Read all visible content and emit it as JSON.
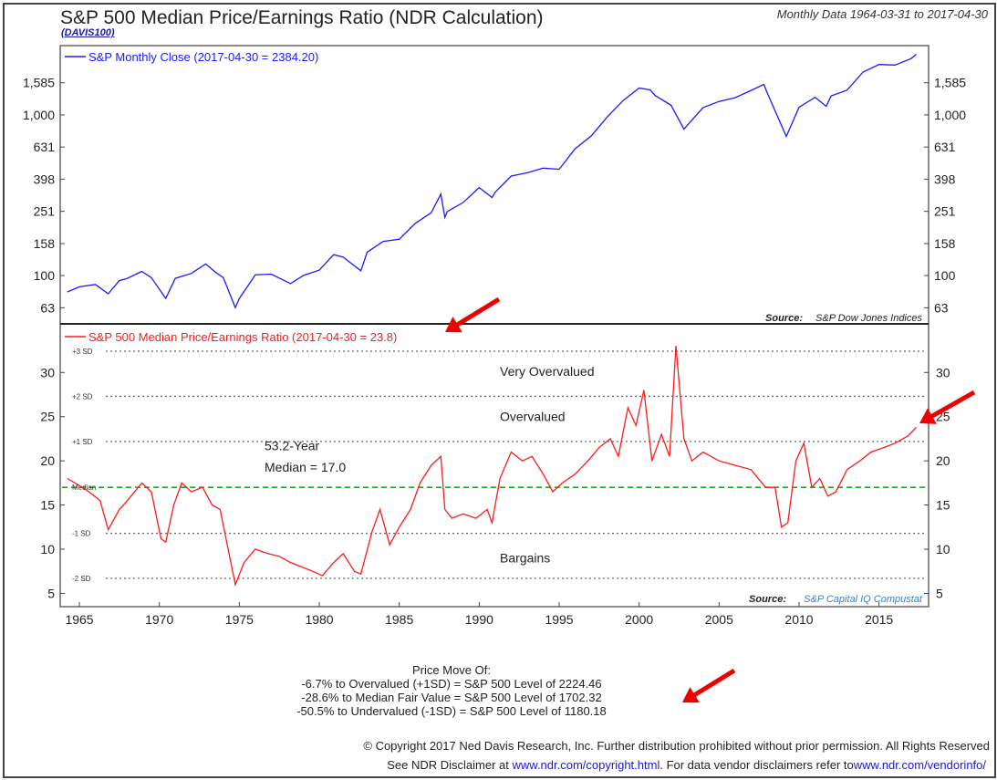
{
  "header": {
    "title": "S&P 500 Median Price/Earnings Ratio (NDR Calculation)",
    "ticker": "(DAVIS100)",
    "range": "Monthly Data 1964-03-31 to 2017-04-30"
  },
  "chart_data": [
    {
      "type": "line",
      "panel": "top",
      "legend": "S&P Monthly Close (2017-04-30 = 2384.20)",
      "yscale": "log",
      "yticks": [
        "63",
        "100",
        "158",
        "251",
        "398",
        "631",
        "1,000",
        "1,585"
      ],
      "ytick_values": [
        63,
        100,
        158,
        251,
        398,
        631,
        1000,
        1585
      ],
      "ylim": [
        50,
        2700
      ],
      "source_label": "Source:",
      "source": "S&P Dow Jones Indices",
      "color": "#1a1aff",
      "x": [
        1964.25,
        1965,
        1966,
        1966.8,
        1967.5,
        1968,
        1968.9,
        1969.5,
        1970.4,
        1971,
        1972,
        1972.9,
        1973.5,
        1974,
        1974.75,
        1975,
        1976,
        1977,
        1978.2,
        1979,
        1980,
        1980.9,
        1981.5,
        1982.6,
        1983,
        1984,
        1985,
        1986,
        1987,
        1987.6,
        1987.85,
        1988,
        1989,
        1990,
        1990.8,
        1991,
        1992,
        1993,
        1994,
        1995,
        1996,
        1997,
        1998,
        1999,
        2000,
        2000.7,
        2001,
        2002,
        2002.8,
        2003,
        2004,
        2005,
        2006,
        2007,
        2007.8,
        2008,
        2009.2,
        2010,
        2011,
        2011.7,
        2012,
        2013,
        2014,
        2015,
        2016,
        2017,
        2017.33
      ],
      "y": [
        79,
        85,
        88,
        77,
        93,
        96,
        106,
        97,
        72,
        96,
        103,
        118,
        105,
        97,
        63,
        72,
        101,
        102,
        89,
        100,
        108,
        135,
        130,
        107,
        140,
        163,
        168,
        211,
        246,
        321,
        230,
        250,
        285,
        353,
        306,
        330,
        416,
        436,
        466,
        459,
        615,
        740,
        970,
        1229,
        1469,
        1430,
        1320,
        1148,
        815,
        860,
        1111,
        1212,
        1280,
        1420,
        1549,
        1380,
        735,
        1115,
        1286,
        1131,
        1312,
        1426,
        1848,
        2059,
        2044,
        2239,
        2384.2
      ]
    },
    {
      "type": "line",
      "panel": "bottom",
      "legend": "S&P 500 Median Price/Earnings Ratio (2017-04-30 = 23.8)",
      "yticks": [
        "5",
        "10",
        "15",
        "20",
        "25",
        "30"
      ],
      "ytick_values": [
        5,
        10,
        15,
        20,
        25,
        30
      ],
      "ylim": [
        3.5,
        35.5
      ],
      "color": "#ff1a1a",
      "x": [
        1964.25,
        1965,
        1965.6,
        1966.3,
        1966.8,
        1967.5,
        1968,
        1968.9,
        1969.5,
        1970.1,
        1970.4,
        1970.9,
        1971.4,
        1972,
        1972.7,
        1973.3,
        1973.8,
        1974.3,
        1974.75,
        1975.3,
        1976,
        1976.8,
        1977.5,
        1978.2,
        1978.9,
        1979.6,
        1980.2,
        1980.9,
        1981.5,
        1982.2,
        1982.6,
        1983.3,
        1983.8,
        1984.4,
        1985,
        1985.7,
        1986.3,
        1987,
        1987.6,
        1987.85,
        1988.3,
        1989,
        1989.8,
        1990.5,
        1990.8,
        1991.3,
        1992,
        1992.7,
        1993.3,
        1994,
        1994.6,
        1995.2,
        1996,
        1996.8,
        1997.5,
        1998.2,
        1998.7,
        1999.3,
        1999.8,
        2000.3,
        2000.8,
        2001.4,
        2001.9,
        2002.3,
        2002.8,
        2003.3,
        2004,
        2005,
        2006,
        2007,
        2007.9,
        2008.5,
        2008.9,
        2009.3,
        2009.8,
        2010.3,
        2010.8,
        2011.3,
        2011.8,
        2012.3,
        2013,
        2013.8,
        2014.5,
        2015.3,
        2016,
        2016.8,
        2017.33
      ],
      "y": [
        18,
        17.2,
        16.5,
        15.5,
        12.2,
        14.5,
        15.5,
        17.5,
        16.5,
        11.2,
        10.8,
        15,
        17.5,
        16.5,
        17,
        15,
        14.5,
        10,
        6,
        8.5,
        10,
        9.5,
        9.2,
        8.5,
        8,
        7.5,
        7,
        8.5,
        9.5,
        7.5,
        7.2,
        12,
        14.5,
        10.5,
        12.5,
        14.5,
        17.5,
        19.5,
        20.5,
        14.5,
        13.5,
        14,
        13.5,
        14.5,
        13,
        18,
        21,
        20,
        20.5,
        18.5,
        16.5,
        17.5,
        18.5,
        20,
        21.5,
        22.5,
        20.5,
        26,
        24,
        28,
        20,
        23,
        20.5,
        33,
        22.5,
        20,
        21,
        20,
        19.5,
        19,
        17,
        17,
        12.5,
        13,
        20,
        22,
        17,
        18,
        16,
        16.5,
        19,
        20,
        21,
        21.5,
        22,
        22.8,
        23.8
      ],
      "sd_lines": [
        {
          "label": "+3 SD",
          "value": 32.4
        },
        {
          "label": "+2 SD",
          "value": 27.3
        },
        {
          "label": "+1 SD",
          "value": 22.2
        },
        {
          "label": "Median",
          "value": 17.0
        },
        {
          "label": "-1 SD",
          "value": 11.8
        },
        {
          "label": "-2 SD",
          "value": 6.7
        }
      ],
      "zones": [
        "Very Overvalued",
        "Overvalued",
        "Bargains"
      ],
      "median_note": [
        "53.2-Year",
        "Median = 17.0"
      ],
      "source_label": "Source:",
      "source": "S&P Capital IQ Compustat"
    }
  ],
  "xaxis": {
    "ticks": [
      "1965",
      "1970",
      "1975",
      "1980",
      "1985",
      "1990",
      "1995",
      "2000",
      "2005",
      "2010",
      "2015"
    ],
    "tick_values": [
      1965,
      1970,
      1975,
      1980,
      1985,
      1990,
      1995,
      2000,
      2005,
      2010,
      2015
    ],
    "xlim": [
      1963.8,
      2018.1
    ]
  },
  "notes": {
    "heading": "Price Move Of:",
    "lines": [
      "-6.7% to Overvalued (+1SD) = S&P 500 Level of 2224.46",
      "-28.6% to Median Fair Value = S&P 500 Level of 1702.32",
      "-50.5% to Undervalued (-1SD) = S&P 500 Level of 1180.18"
    ]
  },
  "footer": {
    "copyright": "© Copyright 2017 Ned Davis Research, Inc. Further distribution prohibited without prior permission. All Rights Reserved",
    "disclaimer_prefix": "See NDR Disclaimer at ",
    "link1": "www.ndr.com/copyright.html",
    "disclaimer_mid": ". For data vendor disclaimers refer to",
    "link2": "www.ndr.com/vendorinfo/"
  }
}
